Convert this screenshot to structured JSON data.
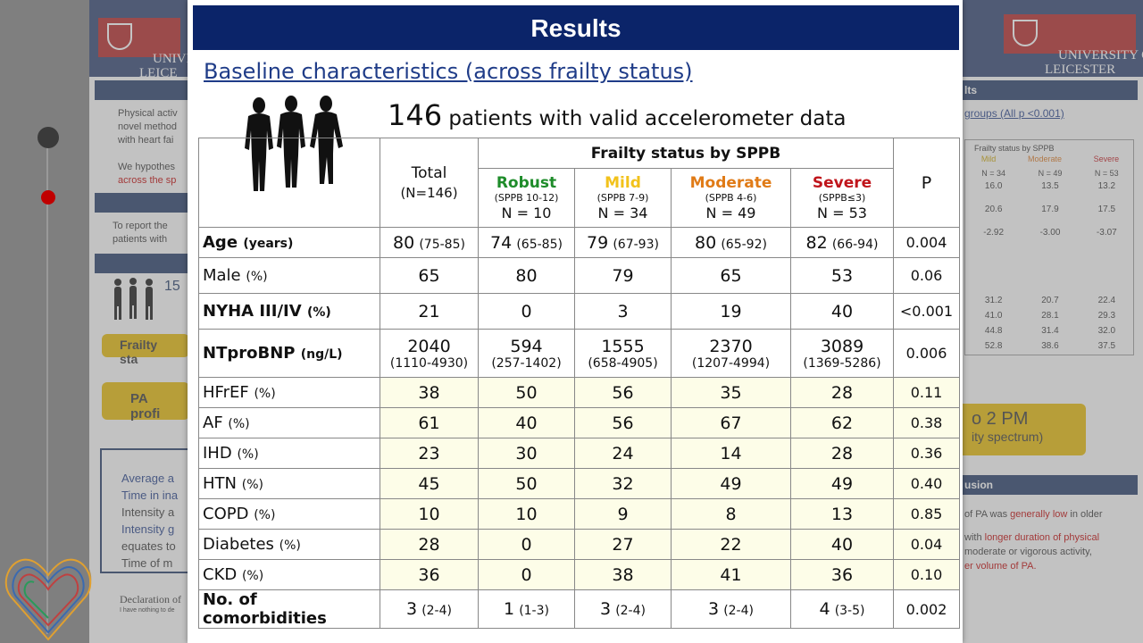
{
  "slide": {
    "title": "Results",
    "subtitle": "Baseline characteristics (across frailty status)",
    "headline": {
      "number": "146",
      "text": " patients with valid accelerometer data"
    }
  },
  "table": {
    "columns": {
      "total": {
        "label": "Total",
        "sub": "(N=146)"
      },
      "group_header": "Frailty status by SPPB",
      "p_label": "P",
      "groups": [
        {
          "name": "Robust",
          "range": "(SPPB 10-12)",
          "n": "N = 10",
          "color": "#1e8c2a"
        },
        {
          "name": "Mild",
          "range": "(SPPB 7-9)",
          "n": "N = 34",
          "color": "#f2c21b"
        },
        {
          "name": "Moderate",
          "range": "(SPPB 4-6)",
          "n": "N = 49",
          "color": "#e07b17"
        },
        {
          "name": "Severe",
          "range": "(SPPB≤3)",
          "n": "N = 53",
          "color": "#c0151b"
        }
      ]
    },
    "rows": [
      {
        "label": "Age",
        "unit": "(years)",
        "bold": true,
        "cells": [
          {
            "v": "80",
            "ci": "(75-85)"
          },
          {
            "v": "74",
            "ci": "(65-85)"
          },
          {
            "v": "79",
            "ci": "(67-93)"
          },
          {
            "v": "80",
            "ci": "(65-92)"
          },
          {
            "v": "82",
            "ci": "(66-94)"
          }
        ],
        "p": "0.004"
      },
      {
        "label": "Male",
        "unit": "(%)",
        "bold": false,
        "cells": [
          {
            "v": "65"
          },
          {
            "v": "80"
          },
          {
            "v": "79"
          },
          {
            "v": "65"
          },
          {
            "v": "53"
          }
        ],
        "p": "0.06"
      },
      {
        "label": "NYHA III/IV",
        "unit": "(%)",
        "bold": true,
        "cells": [
          {
            "v": "21"
          },
          {
            "v": "0"
          },
          {
            "v": "3"
          },
          {
            "v": "19"
          },
          {
            "v": "40"
          }
        ],
        "p": "<0.001"
      },
      {
        "label": "NTproBNP",
        "unit": "(ng/L)",
        "bold": true,
        "stacked": true,
        "cells": [
          {
            "v": "2040",
            "ci": "(1110-4930)"
          },
          {
            "v": "594",
            "ci": "(257-1402)"
          },
          {
            "v": "1555",
            "ci": "(658-4905)"
          },
          {
            "v": "2370",
            "ci": "(1207-4994)"
          },
          {
            "v": "3089",
            "ci": "(1369-5286)"
          }
        ],
        "p": "0.006"
      },
      {
        "label": "HFrEF",
        "unit": "(%)",
        "bold": false,
        "cells": [
          {
            "v": "38"
          },
          {
            "v": "50"
          },
          {
            "v": "56"
          },
          {
            "v": "35"
          },
          {
            "v": "28"
          }
        ],
        "p": "0.11"
      },
      {
        "label": "AF",
        "unit": "(%)",
        "bold": false,
        "cells": [
          {
            "v": "61"
          },
          {
            "v": "40"
          },
          {
            "v": "56"
          },
          {
            "v": "67"
          },
          {
            "v": "62"
          }
        ],
        "p": "0.38"
      },
      {
        "label": "IHD",
        "unit": "(%)",
        "bold": false,
        "cells": [
          {
            "v": "23"
          },
          {
            "v": "30"
          },
          {
            "v": "24"
          },
          {
            "v": "14"
          },
          {
            "v": "28"
          }
        ],
        "p": "0.36"
      },
      {
        "label": "HTN",
        "unit": "(%)",
        "bold": false,
        "cells": [
          {
            "v": "45"
          },
          {
            "v": "50"
          },
          {
            "v": "32"
          },
          {
            "v": "49"
          },
          {
            "v": "49"
          }
        ],
        "p": "0.40"
      },
      {
        "label": "COPD",
        "unit": "(%)",
        "bold": false,
        "cells": [
          {
            "v": "10"
          },
          {
            "v": "10"
          },
          {
            "v": "9"
          },
          {
            "v": "8"
          },
          {
            "v": "13"
          }
        ],
        "p": "0.85"
      },
      {
        "label": "Diabetes",
        "unit": "(%)",
        "bold": false,
        "cells": [
          {
            "v": "28"
          },
          {
            "v": "0"
          },
          {
            "v": "27"
          },
          {
            "v": "22"
          },
          {
            "v": "40"
          }
        ],
        "p": "0.04"
      },
      {
        "label": "CKD",
        "unit": "(%)",
        "bold": false,
        "cells": [
          {
            "v": "36"
          },
          {
            "v": "0"
          },
          {
            "v": "38"
          },
          {
            "v": "41"
          },
          {
            "v": "36"
          }
        ],
        "p": "0.10"
      },
      {
        "label": "No. of comorbidities",
        "unit": "",
        "bold": true,
        "cells": [
          {
            "v": "3",
            "ci": "(2-4)"
          },
          {
            "v": "1",
            "ci": "(1-3)"
          },
          {
            "v": "3",
            "ci": "(2-4)"
          },
          {
            "v": "3",
            "ci": "(2-4)"
          },
          {
            "v": "4",
            "ci": "(3-5)"
          }
        ],
        "p": "0.002"
      }
    ]
  },
  "background": {
    "logo_left": "UNIVE\nLEICE",
    "logo_right": "UNIVERSITY OF\nLEICESTER",
    "results_tab": "lts",
    "groups_note": "groups (All p <0.001)",
    "left_text_1": "Physical activ\nnovel method\nwith heart fai",
    "left_text_2": "We hypothes",
    "left_text_2b": "across the sp",
    "left_text_3": "To report the\npatients with",
    "left_num": "15",
    "frailty_bar": "Frailty sta",
    "pa_bar": "PA profi",
    "bullets": [
      "Average a",
      "Time in ina",
      "Intensity a",
      "Intensity g",
      "equates to",
      "Time of m"
    ],
    "declaration": "Declaration of",
    "declaration_sub": "I have nothing to de",
    "pm_big": "o 2 PM",
    "pm_small": "ity spectrum)",
    "conclusion_tab": "usion",
    "concl_1a": "of PA was ",
    "concl_1b": "generally low",
    "concl_1c": " in older",
    "concl_2a": "with ",
    "concl_2b": "longer duration of physical",
    "concl_3": "moderate or vigorous activity,",
    "concl_4": "er volume of PA.",
    "mini_title": "Frailty status by SPPB",
    "mini_heads": [
      "Mild",
      "Moderate",
      "Severe"
    ],
    "mini_rows": [
      [
        "N = 34",
        "N = 49",
        "N = 53"
      ],
      [
        "16.0",
        "13.5",
        "13.2"
      ],
      [
        "20.6",
        "17.9",
        "17.5"
      ],
      [
        "-2.92",
        "-3.00",
        "-3.07"
      ]
    ],
    "mini_rows_b": [
      [
        "31.2",
        "20.7",
        "22.4"
      ],
      [
        "41.0",
        "28.1",
        "29.3"
      ],
      [
        "44.8",
        "31.4",
        "32.0"
      ],
      [
        "52.8",
        "38.6",
        "37.5"
      ]
    ]
  }
}
